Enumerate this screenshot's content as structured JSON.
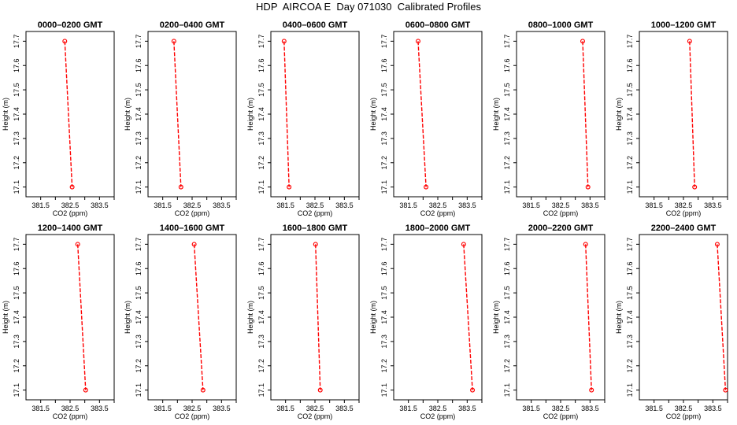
{
  "figure": {
    "title": "HDP  AIRCOA E  Day 071030  Calibrated Profiles"
  },
  "chart_data": [
    {
      "type": "line",
      "title": "0000–0200 GMT",
      "xlabel": "CO2 (ppm)",
      "ylabel": "Height (m)",
      "xlim": [
        381.0,
        384.0
      ],
      "ylim": [
        17.06,
        17.74
      ],
      "xticks": [
        381.5,
        382.5,
        383.5
      ],
      "xticks_minor": [
        382.0,
        383.0,
        384.0
      ],
      "yticks": [
        17.1,
        17.2,
        17.3,
        17.4,
        17.5,
        17.6,
        17.7
      ],
      "grid": false,
      "series": [
        {
          "x": [
            382.32,
            382.57
          ],
          "y": [
            17.7,
            17.1
          ]
        }
      ]
    },
    {
      "type": "line",
      "title": "0200–0400 GMT",
      "xlabel": "CO2 (ppm)",
      "ylabel": "Height (m)",
      "xlim": [
        381.0,
        384.0
      ],
      "ylim": [
        17.06,
        17.74
      ],
      "xticks": [
        381.5,
        382.5,
        383.5
      ],
      "xticks_minor": [
        382.0,
        383.0,
        384.0
      ],
      "yticks": [
        17.1,
        17.2,
        17.3,
        17.4,
        17.5,
        17.6,
        17.7
      ],
      "grid": false,
      "series": [
        {
          "x": [
            381.88,
            382.12
          ],
          "y": [
            17.7,
            17.1
          ]
        }
      ]
    },
    {
      "type": "line",
      "title": "0400–0600 GMT",
      "xlabel": "CO2 (ppm)",
      "ylabel": "Height (m)",
      "xlim": [
        381.0,
        384.0
      ],
      "ylim": [
        17.06,
        17.74
      ],
      "xticks": [
        381.5,
        382.5,
        383.5
      ],
      "xticks_minor": [
        382.0,
        383.0,
        384.0
      ],
      "yticks": [
        17.1,
        17.2,
        17.3,
        17.4,
        17.5,
        17.6,
        17.7
      ],
      "grid": false,
      "series": [
        {
          "x": [
            381.45,
            381.62
          ],
          "y": [
            17.7,
            17.1
          ]
        }
      ]
    },
    {
      "type": "line",
      "title": "0600–0800 GMT",
      "xlabel": "CO2 (ppm)",
      "ylabel": "Height (m)",
      "xlim": [
        381.0,
        384.0
      ],
      "ylim": [
        17.06,
        17.74
      ],
      "xticks": [
        381.5,
        382.5,
        383.5
      ],
      "xticks_minor": [
        382.0,
        383.0,
        384.0
      ],
      "yticks": [
        17.1,
        17.2,
        17.3,
        17.4,
        17.5,
        17.6,
        17.7
      ],
      "grid": false,
      "series": [
        {
          "x": [
            381.83,
            382.1
          ],
          "y": [
            17.7,
            17.1
          ]
        }
      ]
    },
    {
      "type": "line",
      "title": "0800–1000 GMT",
      "xlabel": "CO2 (ppm)",
      "ylabel": "Height (m)",
      "xlim": [
        381.0,
        384.0
      ],
      "ylim": [
        17.06,
        17.74
      ],
      "xticks": [
        381.5,
        382.5,
        383.5
      ],
      "xticks_minor": [
        382.0,
        383.0,
        384.0
      ],
      "yticks": [
        17.1,
        17.2,
        17.3,
        17.4,
        17.5,
        17.6,
        17.7
      ],
      "grid": false,
      "series": [
        {
          "x": [
            383.25,
            383.43
          ],
          "y": [
            17.7,
            17.1
          ]
        }
      ]
    },
    {
      "type": "line",
      "title": "1000–1200 GMT",
      "xlabel": "CO2 (ppm)",
      "ylabel": "Height (m)",
      "xlim": [
        381.0,
        384.0
      ],
      "ylim": [
        17.06,
        17.74
      ],
      "xticks": [
        381.5,
        382.5,
        383.5
      ],
      "xticks_minor": [
        382.0,
        383.0,
        384.0
      ],
      "yticks": [
        17.1,
        17.2,
        17.3,
        17.4,
        17.5,
        17.6,
        17.7
      ],
      "grid": false,
      "series": [
        {
          "x": [
            382.71,
            382.88
          ],
          "y": [
            17.7,
            17.1
          ]
        }
      ]
    },
    {
      "type": "line",
      "title": "1200–1400 GMT",
      "xlabel": "CO2 (ppm)",
      "ylabel": "Height (m)",
      "xlim": [
        381.0,
        384.0
      ],
      "ylim": [
        17.06,
        17.74
      ],
      "xticks": [
        381.5,
        382.5,
        383.5
      ],
      "xticks_minor": [
        382.0,
        383.0,
        384.0
      ],
      "yticks": [
        17.1,
        17.2,
        17.3,
        17.4,
        17.5,
        17.6,
        17.7
      ],
      "grid": false,
      "series": [
        {
          "x": [
            382.76,
            383.03
          ],
          "y": [
            17.7,
            17.1
          ]
        }
      ]
    },
    {
      "type": "line",
      "title": "1400–1600 GMT",
      "xlabel": "CO2 (ppm)",
      "ylabel": "Height (m)",
      "xlim": [
        381.0,
        384.0
      ],
      "ylim": [
        17.06,
        17.74
      ],
      "xticks": [
        381.5,
        382.5,
        383.5
      ],
      "xticks_minor": [
        382.0,
        383.0,
        384.0
      ],
      "yticks": [
        17.1,
        17.2,
        17.3,
        17.4,
        17.5,
        17.6,
        17.7
      ],
      "grid": false,
      "series": [
        {
          "x": [
            382.57,
            382.87
          ],
          "y": [
            17.7,
            17.1
          ]
        }
      ]
    },
    {
      "type": "line",
      "title": "1600–1800 GMT",
      "xlabel": "CO2 (ppm)",
      "ylabel": "Height (m)",
      "xlim": [
        381.0,
        384.0
      ],
      "ylim": [
        17.06,
        17.74
      ],
      "xticks": [
        381.5,
        382.5,
        383.5
      ],
      "xticks_minor": [
        382.0,
        383.0,
        384.0
      ],
      "yticks": [
        17.1,
        17.2,
        17.3,
        17.4,
        17.5,
        17.6,
        17.7
      ],
      "grid": false,
      "series": [
        {
          "x": [
            382.52,
            382.68
          ],
          "y": [
            17.7,
            17.1
          ]
        }
      ]
    },
    {
      "type": "line",
      "title": "1800–2000 GMT",
      "xlabel": "CO2 (ppm)",
      "ylabel": "Height (m)",
      "xlim": [
        381.0,
        384.0
      ],
      "ylim": [
        17.06,
        17.74
      ],
      "xticks": [
        381.5,
        382.5,
        383.5
      ],
      "xticks_minor": [
        382.0,
        383.0,
        384.0
      ],
      "yticks": [
        17.1,
        17.2,
        17.3,
        17.4,
        17.5,
        17.6,
        17.7
      ],
      "grid": false,
      "series": [
        {
          "x": [
            383.38,
            383.68
          ],
          "y": [
            17.7,
            17.1
          ]
        }
      ]
    },
    {
      "type": "line",
      "title": "2000–2200 GMT",
      "xlabel": "CO2 (ppm)",
      "ylabel": "Height (m)",
      "xlim": [
        381.0,
        384.0
      ],
      "ylim": [
        17.06,
        17.74
      ],
      "xticks": [
        381.5,
        382.5,
        383.5
      ],
      "xticks_minor": [
        382.0,
        383.0,
        384.0
      ],
      "yticks": [
        17.1,
        17.2,
        17.3,
        17.4,
        17.5,
        17.6,
        17.7
      ],
      "grid": false,
      "series": [
        {
          "x": [
            383.35,
            383.55
          ],
          "y": [
            17.7,
            17.1
          ]
        }
      ]
    },
    {
      "type": "line",
      "title": "2200–2400 GMT",
      "xlabel": "CO2 (ppm)",
      "ylabel": "Height (m)",
      "xlim": [
        381.0,
        384.0
      ],
      "ylim": [
        17.06,
        17.74
      ],
      "xticks": [
        381.5,
        382.5,
        383.5
      ],
      "xticks_minor": [
        382.0,
        383.0,
        384.0
      ],
      "yticks": [
        17.1,
        17.2,
        17.3,
        17.4,
        17.5,
        17.6,
        17.7
      ],
      "grid": false,
      "series": [
        {
          "x": [
            383.65,
            383.93
          ],
          "y": [
            17.7,
            17.1
          ]
        }
      ]
    }
  ]
}
